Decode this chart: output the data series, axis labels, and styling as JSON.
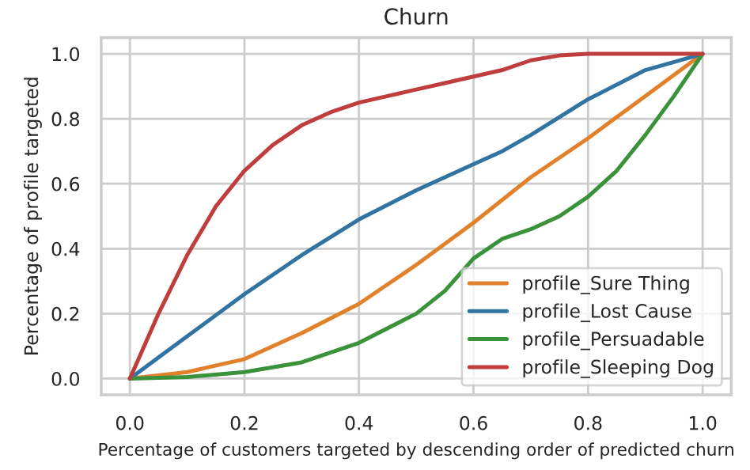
{
  "chart_data": {
    "type": "line",
    "title": "Churn",
    "xlabel": "Percentage of customers targeted by descending order of predicted churn",
    "ylabel": "Percentage of profile targeted",
    "xlim": [
      -0.05,
      1.05
    ],
    "ylim": [
      -0.05,
      1.05
    ],
    "xticks": [
      {
        "value": 0,
        "label": "0.0"
      },
      0.2,
      0.4,
      0.6,
      0.8,
      {
        "value": 1,
        "label": "1.0"
      }
    ],
    "yticks": [
      {
        "value": 0,
        "label": "0.0"
      },
      0.2,
      0.4,
      0.6,
      0.8,
      {
        "value": 1,
        "label": "1.0"
      }
    ],
    "grid": true,
    "legend": "bottom right",
    "marker": "none",
    "line_style": "solid",
    "series": [
      {
        "name": "profile_Sure Thing",
        "color": "#e1812c",
        "x": [
          0,
          0.1,
          0.2,
          0.3,
          0.4,
          0.5,
          0.6,
          0.7,
          0.8,
          0.9,
          1.0
        ],
        "values": [
          0,
          0.02,
          0.06,
          0.14,
          0.23,
          0.35,
          0.48,
          0.62,
          0.74,
          0.87,
          1.0
        ]
      },
      {
        "name": "profile_Lost Cause",
        "color": "#3274a1",
        "x": [
          0,
          0.1,
          0.2,
          0.3,
          0.4,
          0.5,
          0.6,
          0.65,
          0.7,
          0.8,
          0.9,
          1.0
        ],
        "values": [
          0,
          0.13,
          0.26,
          0.38,
          0.49,
          0.58,
          0.66,
          0.7,
          0.75,
          0.86,
          0.95,
          1.0
        ]
      },
      {
        "name": "profile_Persuadable",
        "color": "#3a923a",
        "x": [
          0,
          0.1,
          0.2,
          0.3,
          0.4,
          0.5,
          0.55,
          0.6,
          0.65,
          0.7,
          0.75,
          0.8,
          0.85,
          0.9,
          0.95,
          1.0
        ],
        "values": [
          0,
          0.005,
          0.02,
          0.05,
          0.11,
          0.2,
          0.27,
          0.37,
          0.43,
          0.46,
          0.5,
          0.56,
          0.64,
          0.75,
          0.87,
          1.0
        ]
      },
      {
        "name": "profile_Sleeping Dog",
        "color": "#c03d3e",
        "x": [
          0,
          0.05,
          0.1,
          0.15,
          0.2,
          0.25,
          0.3,
          0.35,
          0.4,
          0.45,
          0.5,
          0.55,
          0.6,
          0.65,
          0.7,
          0.75,
          0.8,
          0.9,
          1.0
        ],
        "values": [
          0,
          0.2,
          0.38,
          0.53,
          0.64,
          0.72,
          0.78,
          0.82,
          0.85,
          0.87,
          0.89,
          0.91,
          0.93,
          0.95,
          0.98,
          0.995,
          1.0,
          1.0,
          1.0
        ]
      }
    ]
  }
}
